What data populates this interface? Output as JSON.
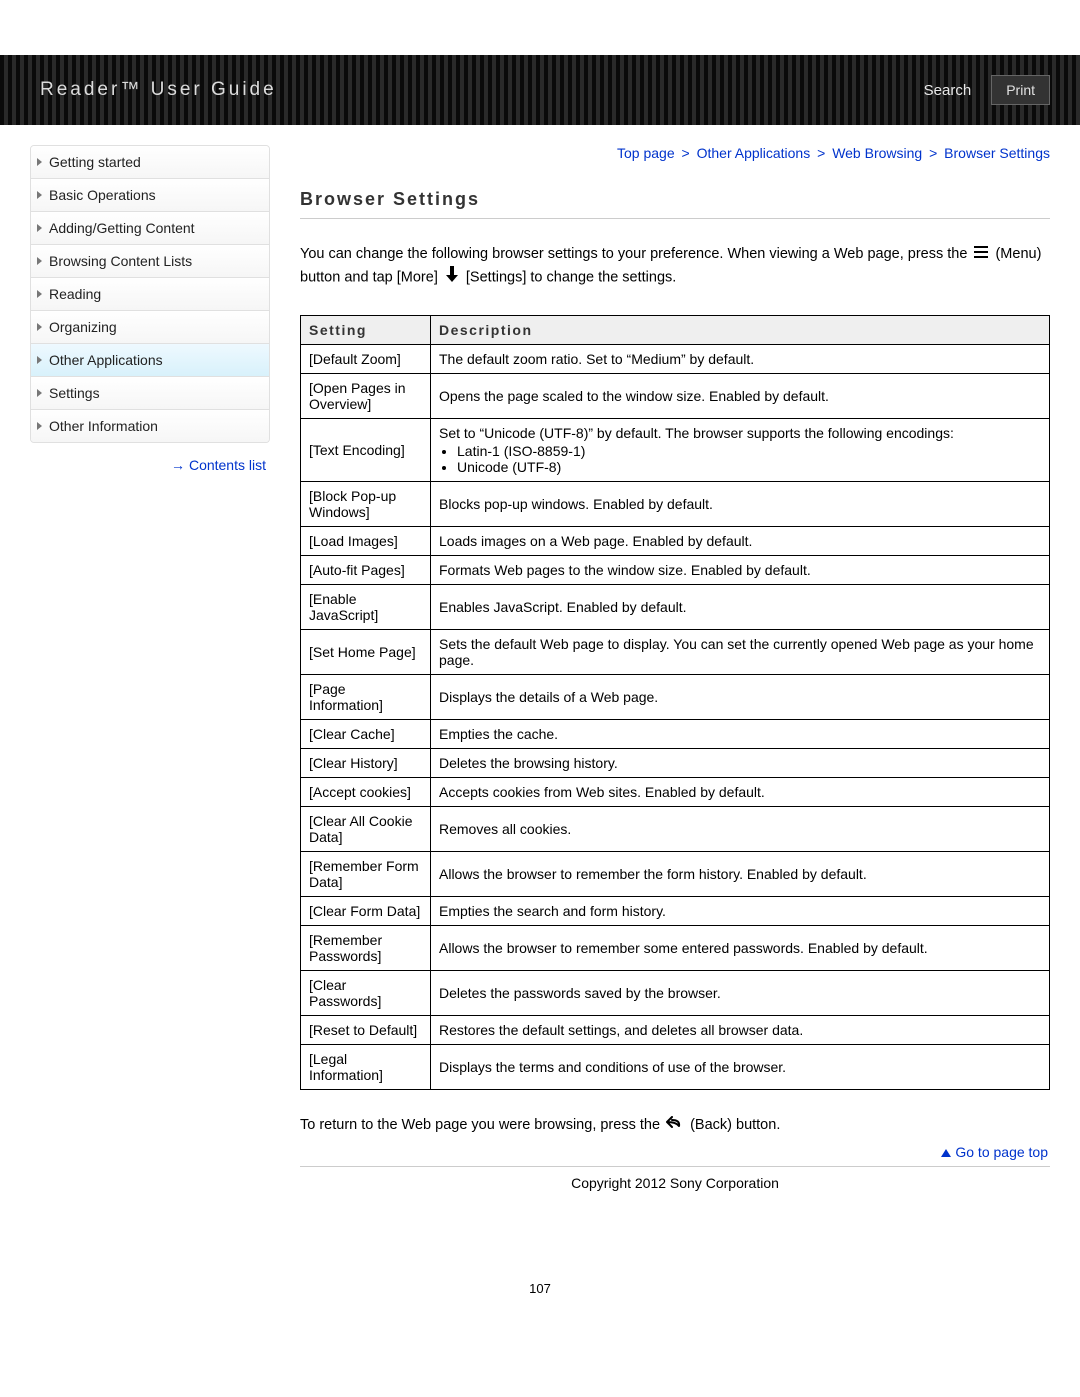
{
  "header": {
    "title": "Reader™ User Guide",
    "search_label": "Search",
    "print_label": "Print"
  },
  "sidebar": {
    "items": [
      {
        "label": "Getting started",
        "active": false
      },
      {
        "label": "Basic Operations",
        "active": false
      },
      {
        "label": "Adding/Getting Content",
        "active": false
      },
      {
        "label": "Browsing Content Lists",
        "active": false
      },
      {
        "label": "Reading",
        "active": false
      },
      {
        "label": "Organizing",
        "active": false
      },
      {
        "label": "Other Applications",
        "active": true
      },
      {
        "label": "Settings",
        "active": false
      },
      {
        "label": "Other Information",
        "active": false
      }
    ],
    "contents_list_label": "Contents list"
  },
  "breadcrumb": {
    "items": [
      "Top page",
      "Other Applications",
      "Web Browsing",
      "Browser Settings"
    ],
    "separator": ">"
  },
  "main": {
    "heading": "Browser Settings",
    "intro_a": "You can change the following browser settings to your preference. When viewing a Web page, press the ",
    "intro_menu": "(Menu) button and tap [More]",
    "intro_settings": "[Settings] to change the settings.",
    "table_header_setting": "Setting",
    "table_header_description": "Description",
    "rows": [
      {
        "setting": "[Default Zoom]",
        "desc": "The default zoom ratio. Set to “Medium” by default."
      },
      {
        "setting": "[Open Pages in Overview]",
        "desc": "Opens the page scaled to the window size. Enabled by default."
      },
      {
        "setting": "[Text Encoding]",
        "desc": "Set to “Unicode (UTF-8)” by default. The browser supports the following encodings:",
        "bullets": [
          "Latin-1 (ISO-8859-1)",
          "Unicode (UTF-8)"
        ]
      },
      {
        "setting": "[Block Pop-up Windows]",
        "desc": "Blocks pop-up windows. Enabled by default."
      },
      {
        "setting": "[Load Images]",
        "desc": "Loads images on a Web page. Enabled by default."
      },
      {
        "setting": "[Auto-fit Pages]",
        "desc": "Formats Web pages to the window size. Enabled by default."
      },
      {
        "setting": "[Enable JavaScript]",
        "desc": "Enables JavaScript. Enabled by default."
      },
      {
        "setting": "[Set Home Page]",
        "desc": "Sets the default Web page to display. You can set the currently opened Web page as your home page."
      },
      {
        "setting": "[Page Information]",
        "desc": "Displays the details of a Web page."
      },
      {
        "setting": "[Clear Cache]",
        "desc": "Empties the cache."
      },
      {
        "setting": "[Clear History]",
        "desc": "Deletes the browsing history."
      },
      {
        "setting": "[Accept cookies]",
        "desc": "Accepts cookies from Web sites. Enabled by default."
      },
      {
        "setting": "[Clear All Cookie Data]",
        "desc": "Removes all cookies."
      },
      {
        "setting": "[Remember Form Data]",
        "desc": "Allows the browser to remember the form history. Enabled by default."
      },
      {
        "setting": "[Clear Form Data]",
        "desc": "Empties the search and form history."
      },
      {
        "setting": "[Remember Passwords]",
        "desc": "Allows the browser to remember some entered passwords. Enabled by default."
      },
      {
        "setting": "[Clear Passwords]",
        "desc": "Deletes the passwords saved by the browser."
      },
      {
        "setting": "[Reset to Default]",
        "desc": "Restores the default settings, and deletes all browser data."
      },
      {
        "setting": "[Legal Information]",
        "desc": "Displays the terms and conditions of use of the browser."
      }
    ],
    "return_note_a": "To return to the Web page you were browsing, press the ",
    "return_note_b": " (Back) button.",
    "go_top_label": "Go to page top",
    "copyright": "Copyright 2012 Sony Corporation",
    "page_number": "107"
  },
  "colors": {
    "link": "#0033cc",
    "header_bg_dark": "#0a0a0a",
    "header_bg_light": "#2a2a2a",
    "active_nav_top": "#eef9ff",
    "active_nav_bottom": "#d8f1fb",
    "table_header_bg": "#efefef",
    "border": "#000000"
  }
}
